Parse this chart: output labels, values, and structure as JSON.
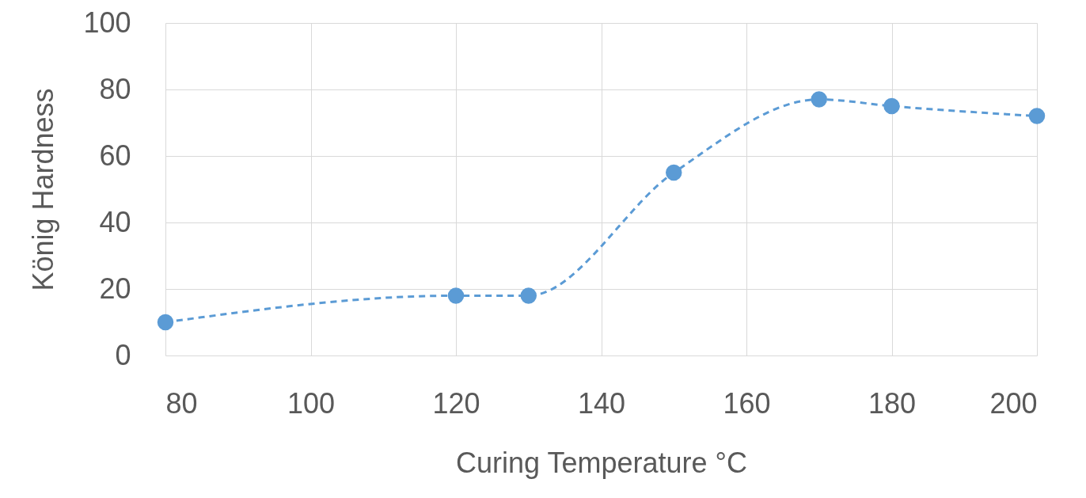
{
  "chart_data": {
    "type": "line",
    "xlabel": "Curing Temperature °C",
    "ylabel": "König Hardness",
    "x": [
      80,
      120,
      130,
      150,
      170,
      180,
      200
    ],
    "series": [
      {
        "color": "#5b9bd5",
        "values": [
          10,
          18,
          18,
          55,
          77,
          75,
          72
        ]
      }
    ],
    "xlim": [
      80,
      200
    ],
    "xticks": [
      80,
      100,
      120,
      140,
      160,
      180,
      200
    ],
    "ylim": [
      0,
      100
    ],
    "yticks": [
      0,
      20,
      40,
      60,
      80,
      100
    ],
    "grid": true,
    "marker": "circle",
    "line_style": "dashed"
  }
}
